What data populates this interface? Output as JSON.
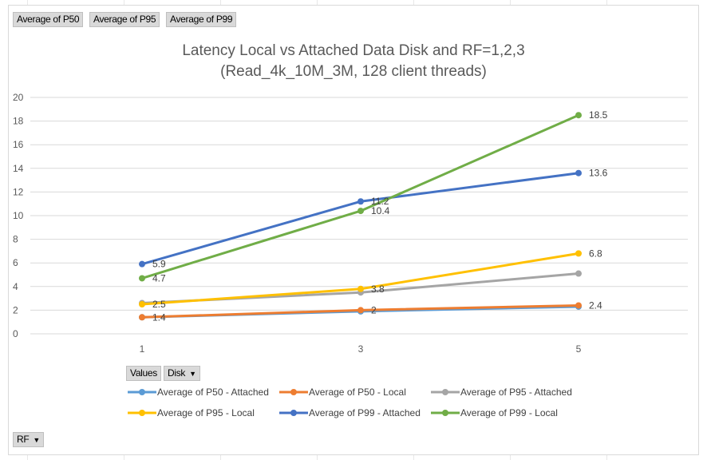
{
  "field_buttons": {
    "values_row": [
      "Average of P50",
      "Average of P95",
      "Average of P99"
    ],
    "values_label": "Values",
    "disk_label": "Disk",
    "rf_label": "RF"
  },
  "colors": {
    "p50_attached": "#5b9bd5",
    "p50_local": "#ed7d31",
    "p95_attached": "#a5a5a5",
    "p95_local": "#ffc000",
    "p99_attached": "#4472c4",
    "p99_local": "#70ad47"
  },
  "chart_data": {
    "type": "line",
    "title": "Latency Local vs Attached Data Disk and RF=1,2,3",
    "subtitle": "(Read_4k_10M_3M, 128 client threads)",
    "categories": [
      "1",
      "3",
      "5"
    ],
    "ylim": [
      0,
      20
    ],
    "yticks": [
      "0",
      "2",
      "4",
      "6",
      "8",
      "10",
      "12",
      "14",
      "16",
      "18",
      "20"
    ],
    "grid": true,
    "legend_position": "bottom",
    "series": [
      {
        "name": "Average of P50 - Attached",
        "values": [
          1.4,
          1.9,
          2.3
        ]
      },
      {
        "name": "Average of P50 - Local",
        "values": [
          1.4,
          2.0,
          2.4
        ]
      },
      {
        "name": "Average of P95 - Attached",
        "values": [
          2.6,
          3.5,
          5.1
        ]
      },
      {
        "name": "Average of P95 - Local",
        "values": [
          2.5,
          3.8,
          6.8
        ]
      },
      {
        "name": "Average of P99 - Attached",
        "values": [
          5.9,
          11.2,
          13.6
        ]
      },
      {
        "name": "Average of P99 - Local",
        "values": [
          4.7,
          10.4,
          18.5
        ]
      }
    ],
    "data_labels": [
      {
        "series": 1,
        "point": 0,
        "text": "1.4"
      },
      {
        "series": 1,
        "point": 1,
        "text": "2"
      },
      {
        "series": 1,
        "point": 2,
        "text": "2.4"
      },
      {
        "series": 3,
        "point": 0,
        "text": "2.5"
      },
      {
        "series": 3,
        "point": 1,
        "text": "3.8"
      },
      {
        "series": 3,
        "point": 2,
        "text": "6.8"
      },
      {
        "series": 4,
        "point": 0,
        "text": "5.9"
      },
      {
        "series": 4,
        "point": 1,
        "text": "11.2"
      },
      {
        "series": 4,
        "point": 2,
        "text": "13.6"
      },
      {
        "series": 5,
        "point": 0,
        "text": "4.7"
      },
      {
        "series": 5,
        "point": 1,
        "text": "10.4"
      },
      {
        "series": 5,
        "point": 2,
        "text": "18.5"
      }
    ]
  }
}
